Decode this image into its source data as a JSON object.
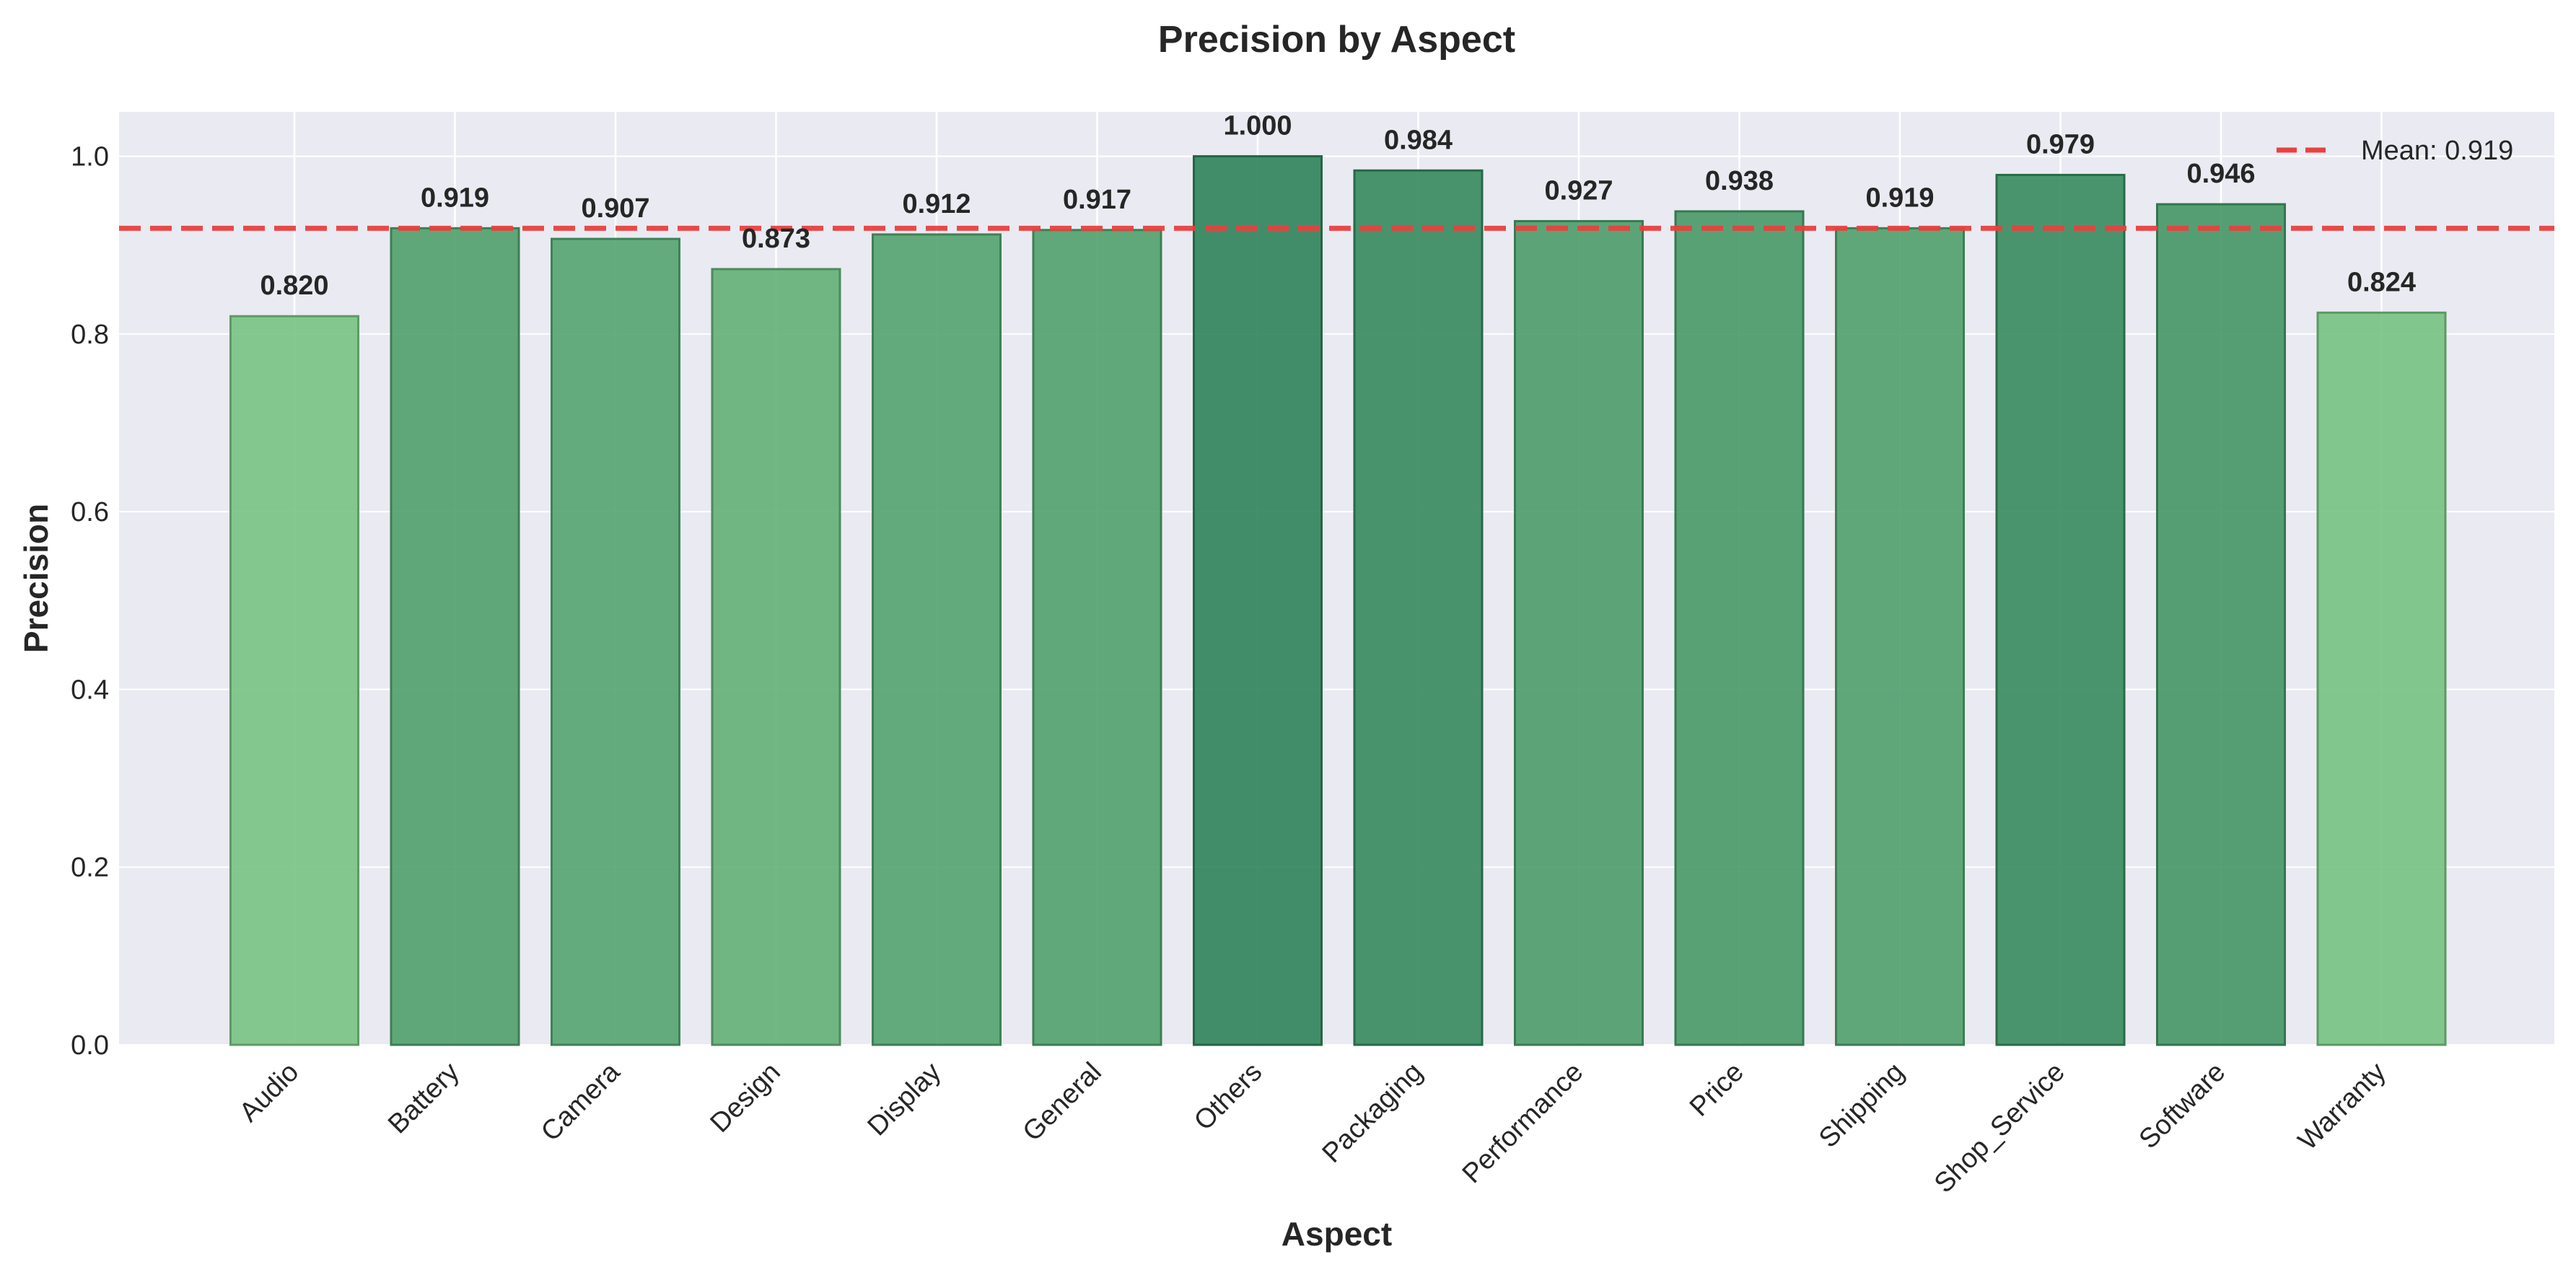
{
  "chart_data": {
    "type": "bar",
    "title": "Precision by Aspect",
    "xlabel": "Aspect",
    "ylabel": "Precision",
    "categories": [
      "Audio",
      "Battery",
      "Camera",
      "Design",
      "Display",
      "General",
      "Others",
      "Packaging",
      "Performance",
      "Price",
      "Shipping",
      "Shop_Service",
      "Software",
      "Warranty"
    ],
    "values": [
      0.82,
      0.919,
      0.907,
      0.873,
      0.912,
      0.917,
      1.0,
      0.984,
      0.927,
      0.938,
      0.919,
      0.979,
      0.946,
      0.824
    ],
    "value_labels": [
      "0.820",
      "0.919",
      "0.907",
      "0.873",
      "0.912",
      "0.917",
      "1.000",
      "0.984",
      "0.927",
      "0.938",
      "0.919",
      "0.979",
      "0.946",
      "0.824"
    ],
    "ylim": [
      0,
      1.05
    ],
    "yticks": [
      0.0,
      0.2,
      0.4,
      0.6,
      0.8,
      1.0
    ],
    "ytick_labels": [
      "0.0",
      "0.2",
      "0.4",
      "0.6",
      "0.8",
      "1.0"
    ],
    "grid": true,
    "colormap": "greens",
    "colors": {
      "background": "#eaeaf2",
      "grid": "#ffffff",
      "mean_line": "#e8413f",
      "bar_light": "#74c27f",
      "bar_dark": "#2a7f55"
    },
    "reference_line": {
      "value": 0.919,
      "label": "Mean: 0.919",
      "style": "dashed"
    },
    "legend": {
      "position": "top-right",
      "entries": [
        "Mean: 0.919"
      ]
    }
  }
}
